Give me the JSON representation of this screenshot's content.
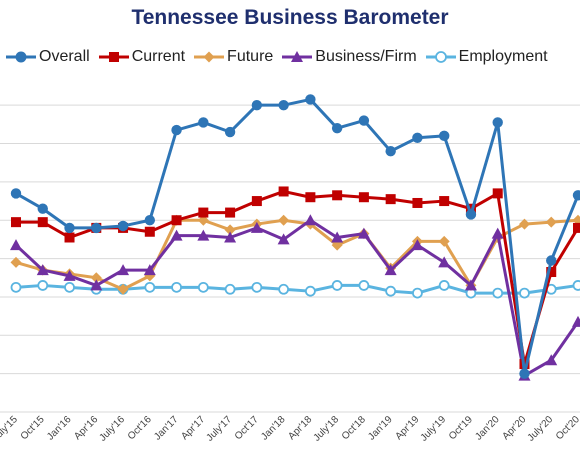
{
  "chart_data": {
    "type": "line",
    "title": "Tennessee Business Barometer",
    "xlabel": "",
    "ylabel": "",
    "grid": true,
    "legend_placement": "top",
    "ylim": [
      -8,
      9
    ],
    "categories": [
      "July'15",
      "Oct'15",
      "Jan'16",
      "Apr'16",
      "July'16",
      "Oct'16",
      "Jan'17",
      "Apr'17",
      "July'17",
      "Oct'17",
      "Jan'18",
      "Apr'18",
      "July'18",
      "Oct'18",
      "Jan'19",
      "Apr'19",
      "July'19",
      "Oct'19",
      "Jan'20",
      "Apr'20",
      "July'20",
      "Oct'20"
    ],
    "tick_labels": [
      "July'15",
      "Oct'15",
      "Jan'16",
      "Apr'16",
      "July'16",
      "Oct'16",
      "Jan'17",
      "Apr'17",
      "July'17",
      "Oct'17",
      "Jan'18",
      "Apr'18",
      "July'18",
      "Oct'18",
      "Jan'19",
      "Apr'19",
      "July'19",
      "Oct'19",
      "Jan'20",
      "Apr'20",
      "July'20",
      "Oct'20"
    ],
    "series": [
      {
        "name": "Overall",
        "color": "#2e75b6",
        "marker": "circle",
        "values": [
          3.4,
          2.6,
          1.6,
          1.6,
          1.7,
          2.0,
          6.7,
          7.1,
          6.6,
          8.0,
          8.0,
          8.3,
          6.8,
          7.2,
          5.6,
          6.3,
          6.4,
          2.3,
          7.1,
          -6.0,
          -0.1,
          3.3
        ]
      },
      {
        "name": "Current",
        "color": "#c00000",
        "marker": "square",
        "values": [
          1.9,
          1.9,
          1.1,
          1.6,
          1.6,
          1.4,
          2.0,
          2.4,
          2.4,
          3.0,
          3.5,
          3.2,
          3.3,
          3.2,
          3.1,
          2.9,
          3.0,
          2.6,
          3.4,
          -5.5,
          -0.7,
          1.6
        ]
      },
      {
        "name": "Future",
        "color": "#e0a050",
        "marker": "diamond",
        "values": [
          -0.2,
          -0.6,
          -0.8,
          -1.0,
          -1.6,
          -0.9,
          2.0,
          2.0,
          1.5,
          1.8,
          2.0,
          1.8,
          0.7,
          1.3,
          -0.5,
          0.9,
          0.9,
          -1.4,
          1.1,
          1.8,
          1.9,
          2.0
        ]
      },
      {
        "name": "Business/Firm",
        "color": "#7030a0",
        "marker": "triangle",
        "values": [
          0.7,
          -0.6,
          -0.9,
          -1.4,
          -0.6,
          -0.6,
          1.2,
          1.2,
          1.1,
          1.6,
          1.0,
          2.0,
          1.1,
          1.3,
          -0.6,
          0.7,
          -0.2,
          -1.4,
          1.3,
          -6.1,
          -5.3,
          -3.3
        ]
      },
      {
        "name": "Employment",
        "color": "#5ab4e0",
        "marker": "hollow-circle",
        "values": [
          -1.5,
          -1.4,
          -1.5,
          -1.6,
          -1.6,
          -1.5,
          -1.5,
          -1.5,
          -1.6,
          -1.5,
          -1.6,
          -1.7,
          -1.4,
          -1.4,
          -1.7,
          -1.8,
          -1.4,
          -1.8,
          -1.8,
          -1.8,
          -1.6,
          -1.4
        ]
      }
    ]
  }
}
